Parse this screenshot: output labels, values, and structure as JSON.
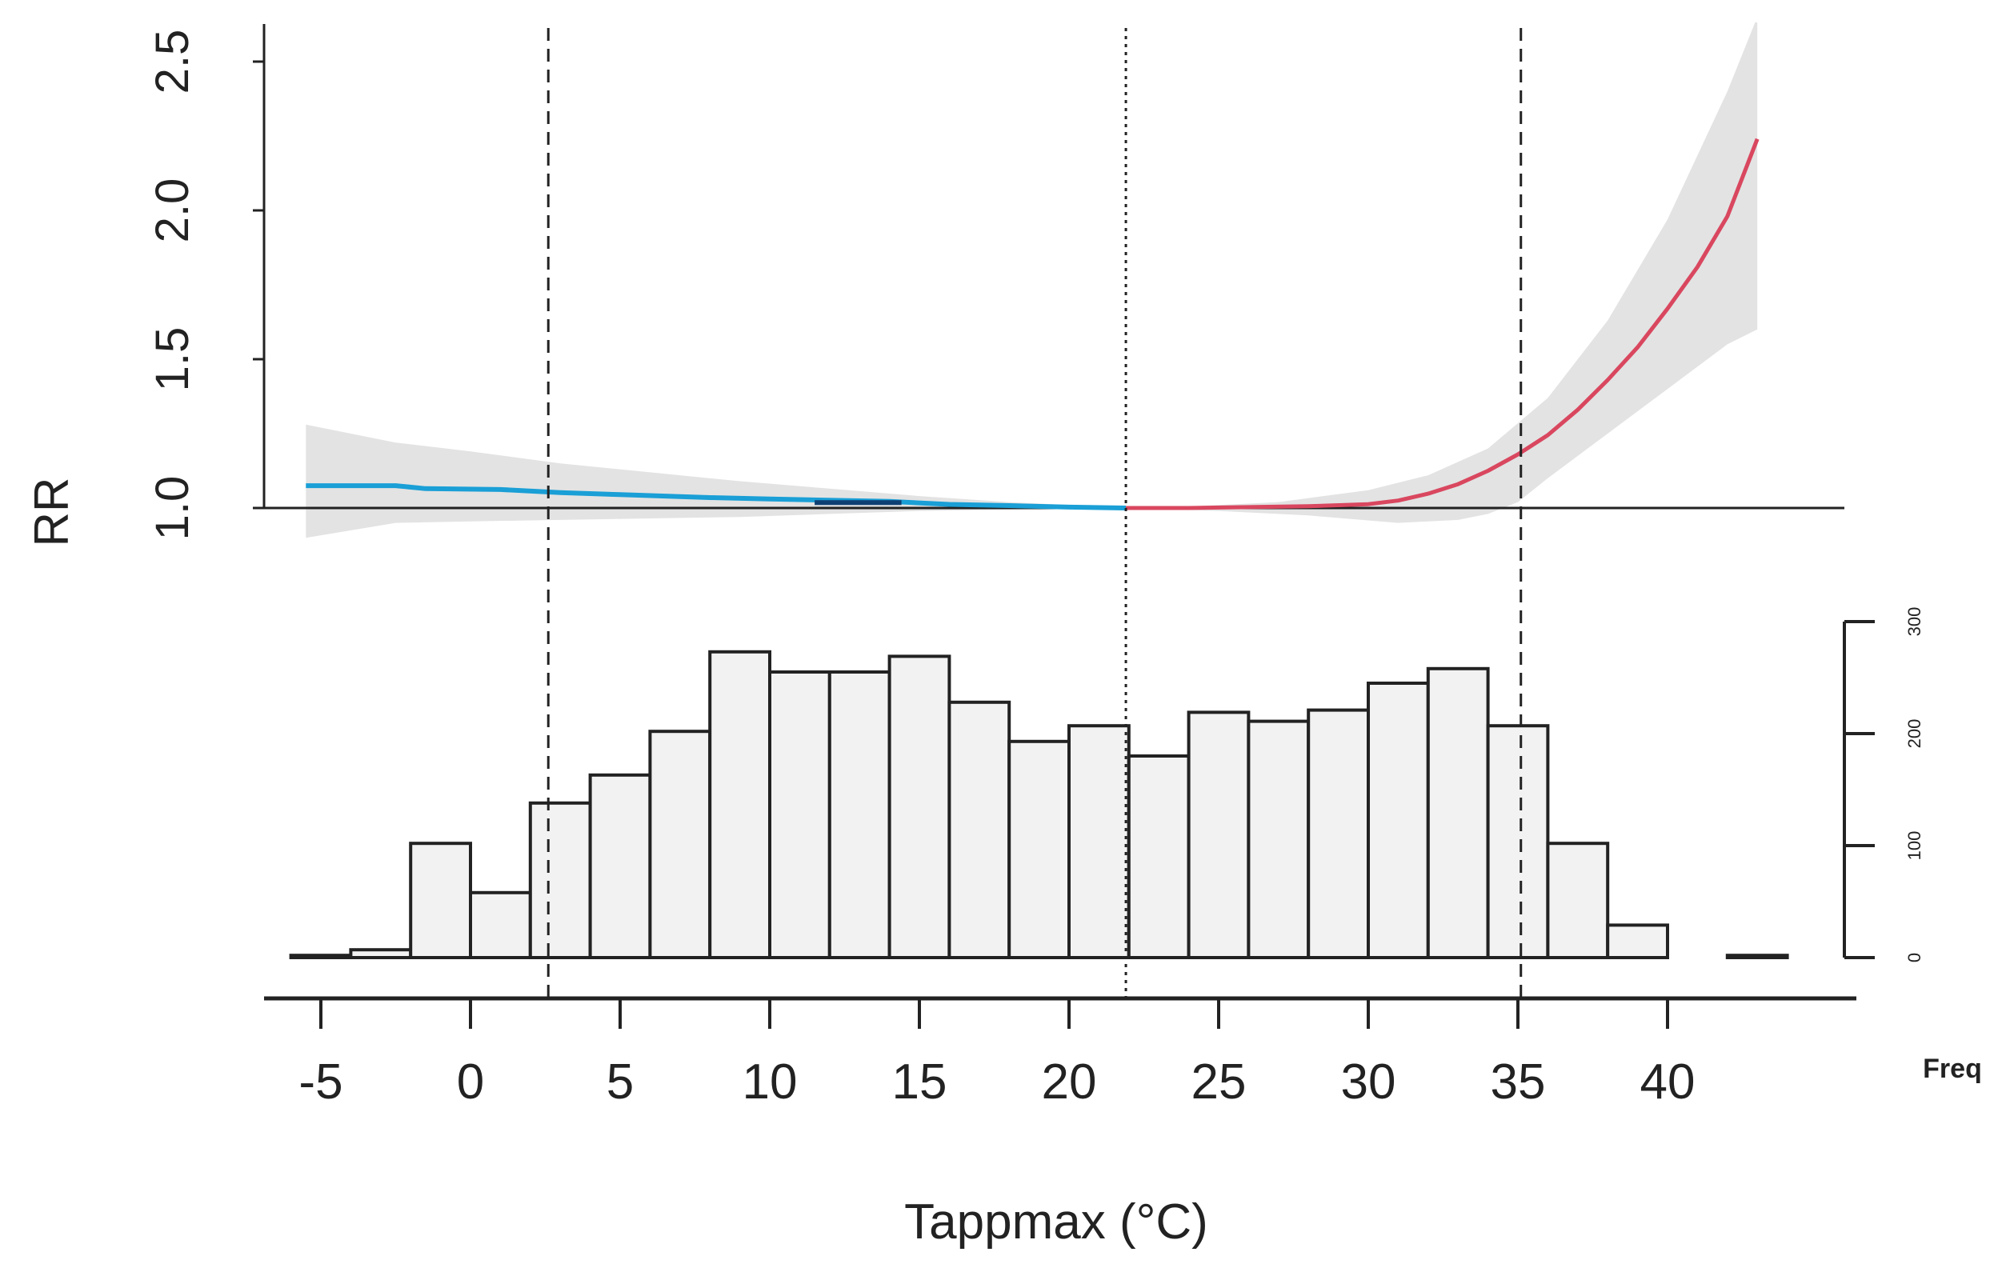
{
  "colors": {
    "cold": "#1a9fd6",
    "cold_dark": "#0e3f73",
    "heat": "#d9475f",
    "ci_band": "#e3e3e3",
    "bar_fill": "#f2f2f2",
    "axis": "#222222"
  },
  "chart_data": [
    {
      "type": "line",
      "name": "exposure-response",
      "ylabel": "RR",
      "xlim": [
        -6,
        44
      ],
      "ylim": [
        1.0,
        2.6
      ],
      "yticks": [
        1.0,
        1.5,
        2.0,
        2.5
      ],
      "ytick_labels": [
        "1.0",
        "1.5",
        "2.0",
        "2.5"
      ],
      "reference_line": 1.0,
      "cold_curve": [
        [
          -5.5,
          1.075
        ],
        [
          -2.5,
          1.075
        ],
        [
          -1.5,
          1.065
        ],
        [
          1,
          1.062
        ],
        [
          3,
          1.052
        ],
        [
          5,
          1.045
        ],
        [
          8,
          1.035
        ],
        [
          10,
          1.03
        ],
        [
          14,
          1.022
        ],
        [
          16,
          1.012
        ],
        [
          18,
          1.008
        ],
        [
          20,
          1.003
        ],
        [
          21.9,
          1.0
        ]
      ],
      "cold_dark_segment": [
        [
          11.5,
          1.018
        ],
        [
          14.4,
          1.018
        ]
      ],
      "heat_curve": [
        [
          21.9,
          1.0
        ],
        [
          24,
          1.0
        ],
        [
          26,
          1.003
        ],
        [
          28,
          1.006
        ],
        [
          30,
          1.013
        ],
        [
          31,
          1.025
        ],
        [
          32,
          1.048
        ],
        [
          33,
          1.08
        ],
        [
          34,
          1.125
        ],
        [
          35,
          1.18
        ],
        [
          36,
          1.245
        ],
        [
          37,
          1.33
        ],
        [
          38,
          1.43
        ],
        [
          39,
          1.54
        ],
        [
          40,
          1.67
        ],
        [
          41,
          1.81
        ],
        [
          42,
          1.98
        ],
        [
          43,
          2.24
        ]
      ],
      "ci_upper": [
        [
          -5.5,
          1.28
        ],
        [
          -2.5,
          1.22
        ],
        [
          0,
          1.19
        ],
        [
          3,
          1.15
        ],
        [
          6,
          1.12
        ],
        [
          9,
          1.09
        ],
        [
          12,
          1.065
        ],
        [
          15,
          1.04
        ],
        [
          18,
          1.02
        ],
        [
          21.9,
          1.0
        ],
        [
          24,
          1.005
        ],
        [
          27,
          1.02
        ],
        [
          30,
          1.06
        ],
        [
          32,
          1.11
        ],
        [
          34,
          1.2
        ],
        [
          36,
          1.37
        ],
        [
          38,
          1.63
        ],
        [
          40,
          1.97
        ],
        [
          42,
          2.4
        ],
        [
          43,
          2.65
        ]
      ],
      "ci_lower": [
        [
          43,
          1.6
        ],
        [
          42,
          1.55
        ],
        [
          40,
          1.4
        ],
        [
          38,
          1.25
        ],
        [
          36,
          1.1
        ],
        [
          35,
          1.02
        ],
        [
          34,
          0.98
        ],
        [
          33,
          0.96
        ],
        [
          31,
          0.95
        ],
        [
          28,
          0.975
        ],
        [
          25,
          0.99
        ],
        [
          21.9,
          1.0
        ],
        [
          18,
          0.995
        ],
        [
          15,
          0.99
        ],
        [
          12,
          0.98
        ],
        [
          9,
          0.97
        ],
        [
          6,
          0.965
        ],
        [
          3,
          0.96
        ],
        [
          0,
          0.955
        ],
        [
          -2.5,
          0.95
        ],
        [
          -5.5,
          0.9
        ]
      ],
      "vlines": [
        {
          "x": 2.6,
          "style": "dashed"
        },
        {
          "x": 21.9,
          "style": "dotted"
        },
        {
          "x": 35.1,
          "style": "dashed"
        }
      ]
    },
    {
      "type": "bar",
      "name": "temperature-histogram",
      "xlabel": "Tappmax (°C)",
      "ylabel": "Freq",
      "xticks": [
        -5,
        0,
        5,
        10,
        15,
        20,
        25,
        30,
        35,
        40
      ],
      "xtick_labels": [
        "-5",
        "0",
        "5",
        "10",
        "15",
        "20",
        "25",
        "30",
        "35",
        "40"
      ],
      "yticks": [
        0,
        100,
        200,
        300
      ],
      "ytick_labels": [
        "0",
        "100",
        "200",
        "300"
      ],
      "ylim": [
        0,
        300
      ],
      "bin_width": 2,
      "bin_starts": [
        -6,
        -4,
        -2,
        0,
        2,
        4,
        6,
        8,
        10,
        12,
        14,
        16,
        18,
        20,
        22,
        24,
        26,
        28,
        30,
        32,
        34,
        36,
        38,
        40,
        42
      ],
      "values": [
        2,
        7,
        102,
        58,
        138,
        163,
        202,
        273,
        255,
        255,
        269,
        228,
        193,
        207,
        180,
        219,
        211,
        221,
        245,
        258,
        207,
        102,
        29,
        0,
        2
      ]
    }
  ]
}
